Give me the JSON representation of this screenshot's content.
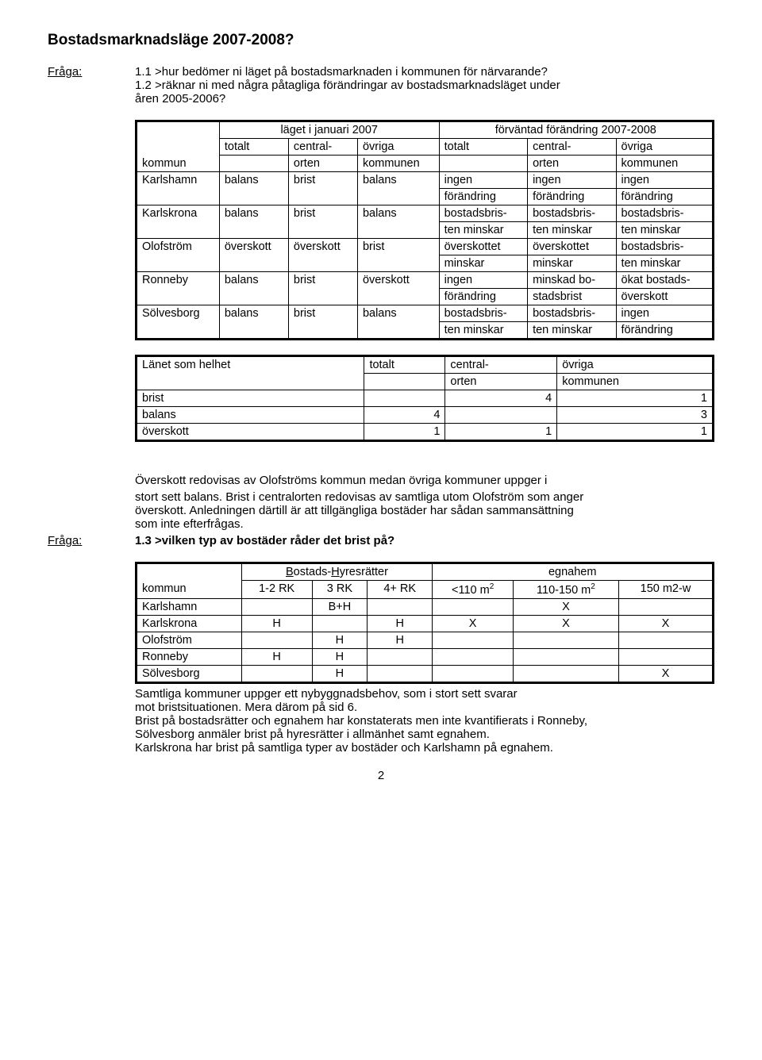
{
  "title": "Bostadsmarknadsläge 2007-2008?",
  "q_label": "Fråga:",
  "q1_1": "1.1 >hur bedömer ni läget på bostadsmarknaden i kommunen för närvarande?",
  "q1_2a": "1.2 >räknar ni med några påtagliga förändringar av bostadsmarknadsläget under",
  "q1_2b": "åren 2005-2006?",
  "t1": {
    "h_group1": "läget i januari 2007",
    "h_group2": "förväntad förändring 2007-2008",
    "h_kommun": "kommun",
    "h_totalt": "totalt",
    "h_central1": "central-",
    "h_central2": "orten",
    "h_ovriga1": "övriga",
    "h_ovriga2": "kommunen",
    "rows": [
      {
        "k": "Karlshamn",
        "c1": "balans",
        "c2": "brist",
        "c3": "balans",
        "c4a": "ingen",
        "c4b": "förändring",
        "c5a": "ingen",
        "c5b": "förändring",
        "c6a": "ingen",
        "c6b": "förändring"
      },
      {
        "k": "Karlskrona",
        "c1": "balans",
        "c2": "brist",
        "c3": "balans",
        "c4a": "bostadsbris-",
        "c4b": "ten minskar",
        "c5a": "bostadsbris-",
        "c5b": "ten minskar",
        "c6a": "bostadsbris-",
        "c6b": "ten minskar"
      },
      {
        "k": "Olofström",
        "c1": "överskott",
        "c2": "överskott",
        "c3": "brist",
        "c4a": "överskottet",
        "c4b": "minskar",
        "c5a": "överskottet",
        "c5b": "minskar",
        "c6a": "bostadsbris-",
        "c6b": "ten minskar"
      },
      {
        "k": "Ronneby",
        "c1": "balans",
        "c2": "brist",
        "c3": "överskott",
        "c4a": "ingen",
        "c4b": "förändring",
        "c5a": "minskad bo-",
        "c5b": "stadsbrist",
        "c6a": "ökat bostads-",
        "c6b": "överskott"
      },
      {
        "k": "Sölvesborg",
        "c1": "balans",
        "c2": "brist",
        "c3": "balans",
        "c4a": "bostadsbris-",
        "c4b": "ten minskar",
        "c5a": "bostadsbris-",
        "c5b": "ten minskar",
        "c6a": "ingen",
        "c6b": "förändring"
      }
    ]
  },
  "t2": {
    "h1": "Länet som helhet",
    "h_totalt": "totalt",
    "h_central1": "central-",
    "h_central2": "orten",
    "h_ovriga1": "övriga",
    "h_ovriga2": "kommunen",
    "rows": [
      {
        "k": "brist",
        "t": "",
        "c": "4",
        "o": "1"
      },
      {
        "k": "balans",
        "t": "4",
        "c": "",
        "o": "3"
      },
      {
        "k": "överskott",
        "t": "1",
        "c": "1",
        "o": "1"
      }
    ]
  },
  "para1a": "Överskott redovisas av Olofströms kommun medan övriga kommuner uppger i",
  "para1b": "stort sett balans. Brist i centralorten redovisas av samtliga utom Olofström som anger",
  "para1c": "överskott. Anledningen därtill är att tillgängliga bostäder har sådan sammansättning",
  "para1d": "som inte efterfrågas.",
  "q1_3": "1.3 >vilken typ av bostäder råder det brist på?",
  "t3": {
    "h_bh_B": "B",
    "h_bh_mid": "ostads-",
    "h_bh_H": "H",
    "h_bh_end": "yresrätter",
    "h_egnahem": "egnahem",
    "h_kommun": "kommun",
    "c1": "1-2 RK",
    "c2": "3 RK",
    "c3": "4+ RK",
    "c4": "<110 m",
    "c5": "110-150 m",
    "c6": "150 m2-w",
    "sup": "2",
    "rows": [
      {
        "k": "Karlshamn",
        "v": [
          "",
          "B+H",
          "",
          "",
          "X",
          ""
        ]
      },
      {
        "k": "Karlskrona",
        "v": [
          "H",
          "",
          "H",
          "X",
          "X",
          "X"
        ]
      },
      {
        "k": "Olofström",
        "v": [
          "",
          "H",
          "H",
          "",
          "",
          ""
        ]
      },
      {
        "k": "Ronneby",
        "v": [
          "H",
          "H",
          "",
          "",
          "",
          ""
        ]
      },
      {
        "k": "Sölvesborg",
        "v": [
          "",
          "H",
          "",
          "",
          "",
          "X"
        ]
      }
    ]
  },
  "foot1": "Samtliga kommuner uppger ett nybyggnadsbehov, som i stort sett svarar",
  "foot2": "mot bristsituationen. Mera därom på sid 6.",
  "foot3": "Brist på bostadsrätter och egnahem har konstaterats men inte kvantifierats i Ronneby,",
  "foot4": "Sölvesborg anmäler brist på hyresrätter i allmänhet samt egnahem.",
  "foot5": "Karlskrona har brist på samtliga typer av bostäder och Karlshamn på egnahem.",
  "page": "2"
}
